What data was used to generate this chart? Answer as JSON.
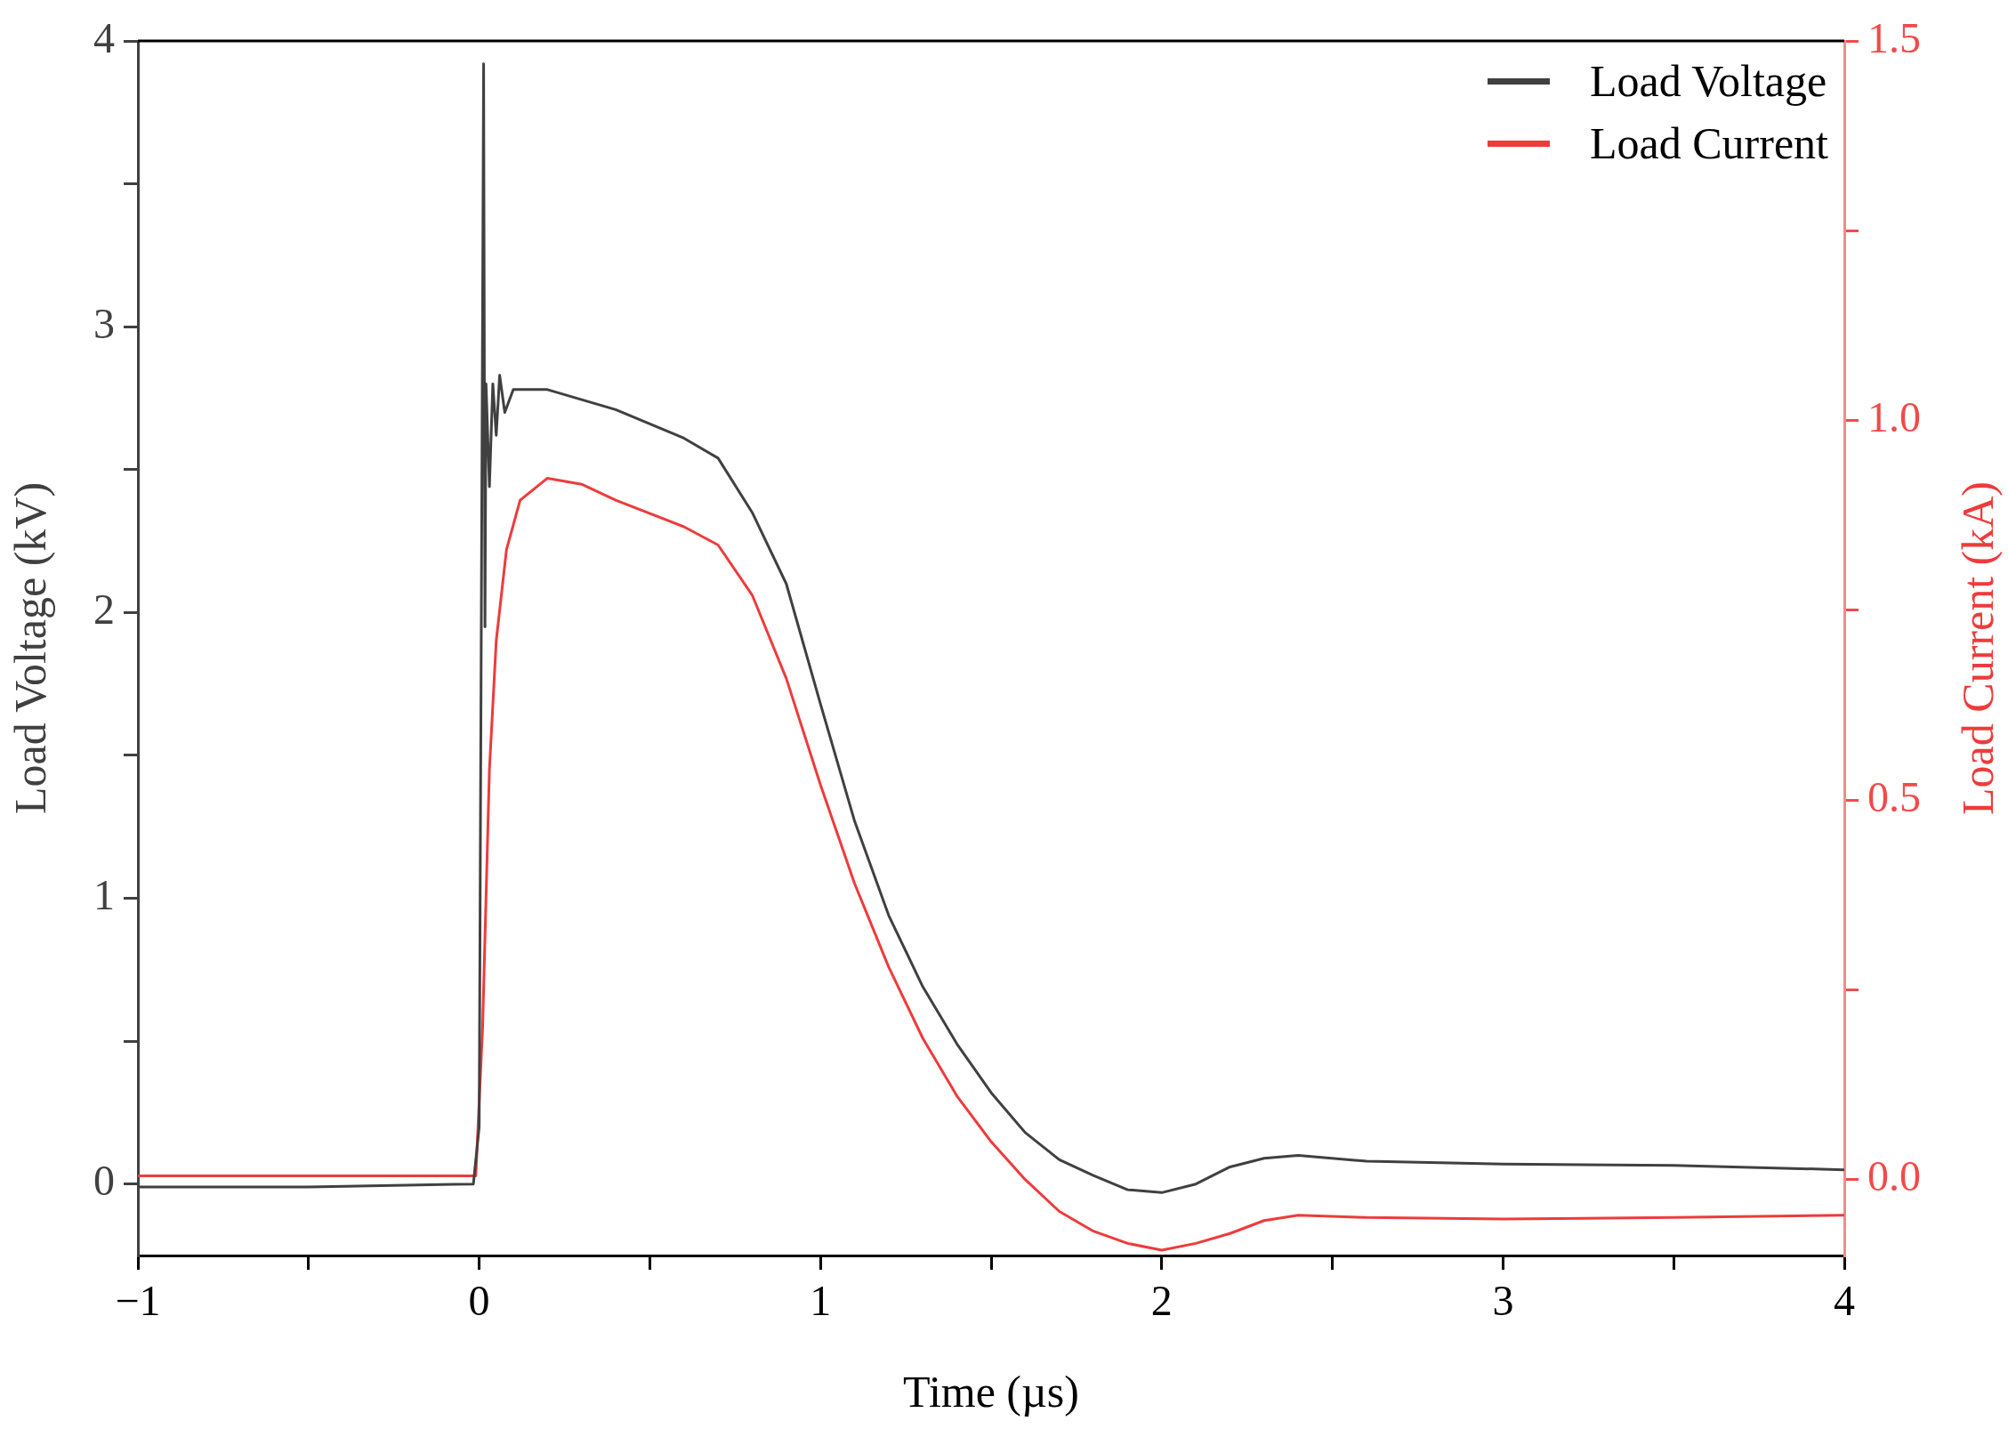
{
  "chart_data": {
    "type": "line",
    "xlabel": "Time (µs)",
    "ylabel": "Load Voltage (kV)",
    "y2label": "Load Current (kA)",
    "xlim": [
      -1,
      4
    ],
    "xticks": [
      {
        "value": -1,
        "label": "−1"
      },
      {
        "value": -0.5,
        "label": null
      },
      0,
      {
        "value": 0.5,
        "label": null
      },
      1,
      {
        "value": 1.5,
        "label": null
      },
      2,
      {
        "value": 2.5,
        "label": null
      },
      3,
      {
        "value": 3.5,
        "label": null
      },
      4
    ],
    "ylim": [
      -0.25,
      4
    ],
    "yticks": [
      0,
      {
        "value": 0.5,
        "label": null
      },
      1,
      {
        "value": 1.5,
        "label": null
      },
      2,
      {
        "value": 2.5,
        "label": null
      },
      3,
      {
        "value": 3.5,
        "label": null
      },
      4
    ],
    "y2lim": [
      -0.1,
      1.5
    ],
    "y2ticks": [
      {
        "value": 0,
        "label": "0.0"
      },
      {
        "value": 0.25,
        "label": null
      },
      {
        "value": 0.5,
        "label": "0.5"
      },
      {
        "value": 0.75,
        "label": null
      },
      {
        "value": 1,
        "label": "1.0"
      },
      {
        "value": 1.25,
        "label": null
      },
      {
        "value": 1.5,
        "label": "1.5"
      }
    ],
    "legend": "top right",
    "grid": false,
    "marker": "none",
    "line_style": "solid",
    "series": [
      {
        "name": "Load Voltage",
        "color": "#404040",
        "x": [
          -1,
          -0.5,
          -0.017,
          0,
          0.006,
          0.013,
          0.017,
          0.02,
          0.03,
          0.04,
          0.05,
          0.06,
          0.075,
          0.1,
          0.2,
          0.4,
          0.6,
          0.7,
          0.8,
          0.9,
          1,
          1.1,
          1.2,
          1.3,
          1.4,
          1.5,
          1.6,
          1.7,
          1.8,
          1.9,
          2,
          2.1,
          2.2,
          2.3,
          2.4,
          2.6,
          3,
          3.5,
          4
        ],
        "values": [
          -0.01,
          -0.01,
          0,
          0.2,
          1.9,
          3.92,
          1.95,
          2.8,
          2.44,
          2.8,
          2.62,
          2.83,
          2.7,
          2.78,
          2.78,
          2.71,
          2.61,
          2.54,
          2.35,
          2.1,
          1.68,
          1.27,
          0.94,
          0.69,
          0.49,
          0.32,
          0.18,
          0.085,
          0.03,
          -0.02,
          -0.03,
          0,
          0.06,
          0.09,
          0.1,
          0.08,
          0.07,
          0.065,
          0.05
        ]
      },
      {
        "name": "Load Current",
        "color": "#ee3b3b",
        "axis": "y2",
        "x": [
          -1,
          -0.5,
          -0.01,
          0.01,
          0.03,
          0.05,
          0.08,
          0.12,
          0.2,
          0.3,
          0.4,
          0.6,
          0.7,
          0.8,
          0.9,
          1,
          1.1,
          1.2,
          1.3,
          1.4,
          1.5,
          1.6,
          1.7,
          1.8,
          1.9,
          2,
          2.1,
          2.2,
          2.3,
          2.4,
          2.6,
          3,
          3.5,
          4
        ],
        "values": [
          0.005,
          0.005,
          0.005,
          0.2,
          0.54,
          0.71,
          0.83,
          0.895,
          0.924,
          0.916,
          0.895,
          0.86,
          0.836,
          0.77,
          0.66,
          0.52,
          0.39,
          0.28,
          0.186,
          0.11,
          0.05,
          0,
          -0.042,
          -0.068,
          -0.084,
          -0.093,
          -0.084,
          -0.071,
          -0.054,
          -0.047,
          -0.05,
          -0.052,
          -0.05,
          -0.047
        ]
      }
    ]
  }
}
